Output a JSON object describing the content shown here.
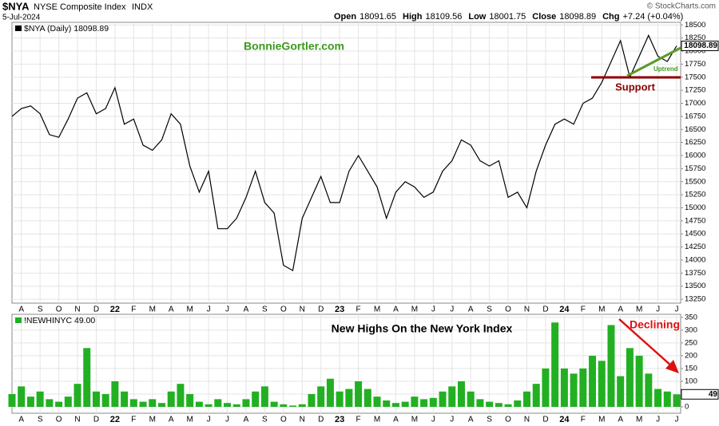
{
  "header": {
    "symbol": "$NYA",
    "name": "NYSE Composite Index",
    "exchange": "INDX",
    "date": "5-Jul-2024",
    "quote": [
      {
        "label": "Open",
        "value": "18091.65"
      },
      {
        "label": "High",
        "value": "18109.56"
      },
      {
        "label": "Low",
        "value": "18001.75"
      },
      {
        "label": "Close",
        "value": "18098.89"
      },
      {
        "label": "Chg",
        "value": "+7.24 (+0.04%)"
      }
    ],
    "credit": "© StockCharts.com"
  },
  "chart_data": [
    {
      "type": "line",
      "legend": "$NYA (Daily) 18098.89",
      "color": "#000000",
      "annotations": [
        "BonnieGortler.com",
        "Uptrend",
        "Support"
      ],
      "categories": [
        null,
        "A",
        null,
        "S",
        null,
        "O",
        null,
        "N",
        null,
        "D",
        null,
        "22",
        null,
        "F",
        null,
        "M",
        null,
        "A",
        null,
        "M",
        null,
        "J",
        null,
        "J",
        null,
        "A",
        null,
        "S",
        null,
        "O",
        null,
        "N",
        null,
        "D",
        null,
        "23",
        null,
        "F",
        null,
        "M",
        null,
        "A",
        null,
        "M",
        null,
        "J",
        null,
        "J",
        null,
        "A",
        null,
        "S",
        null,
        "O",
        null,
        "N",
        null,
        "D",
        null,
        "24",
        null,
        "F",
        null,
        "M",
        null,
        "A",
        null,
        "M",
        null,
        "J",
        null,
        "J"
      ],
      "values": [
        16750,
        16900,
        16950,
        16800,
        16400,
        16350,
        16700,
        17100,
        17200,
        16800,
        16900,
        17300,
        16600,
        16700,
        16200,
        16100,
        16300,
        16800,
        16600,
        15800,
        15300,
        15700,
        14600,
        14600,
        14800,
        15200,
        15700,
        15100,
        14900,
        13900,
        13800,
        14800,
        15200,
        15600,
        15100,
        15100,
        15700,
        16000,
        15700,
        15400,
        14800,
        15300,
        15500,
        15400,
        15200,
        15300,
        15700,
        15900,
        16300,
        16200,
        15900,
        15800,
        15900,
        15200,
        15300,
        15000,
        15700,
        16200,
        16600,
        16700,
        16600,
        17000,
        17100,
        17400,
        17800,
        18200,
        17500,
        17900,
        18300,
        17900,
        17800,
        18098.89
      ],
      "ylim": [
        13175,
        18550
      ],
      "yticks": [
        13250,
        13500,
        13750,
        14000,
        14250,
        14500,
        14750,
        15000,
        15250,
        15500,
        15750,
        16000,
        16250,
        16500,
        16750,
        17000,
        17250,
        17500,
        17750,
        18000,
        18250,
        18500
      ],
      "grid": true
    },
    {
      "type": "bar",
      "legend": "!NEWHINYC 49.00",
      "color": "#22b022",
      "annotations": [
        "New Highs On the New York Index",
        "Declining"
      ],
      "categories": [
        null,
        "A",
        null,
        "S",
        null,
        "O",
        null,
        "N",
        null,
        "D",
        null,
        "22",
        null,
        "F",
        null,
        "M",
        null,
        "A",
        null,
        "M",
        null,
        "J",
        null,
        "J",
        null,
        "A",
        null,
        "S",
        null,
        "O",
        null,
        "N",
        null,
        "D",
        null,
        "23",
        null,
        "F",
        null,
        "M",
        null,
        "A",
        null,
        "M",
        null,
        "J",
        null,
        "J",
        null,
        "A",
        null,
        "S",
        null,
        "O",
        null,
        "N",
        null,
        "D",
        null,
        "24",
        null,
        "F",
        null,
        "M",
        null,
        "A",
        null,
        "M",
        null,
        "J",
        null,
        "J"
      ],
      "values": [
        50,
        80,
        40,
        60,
        30,
        20,
        40,
        90,
        230,
        60,
        50,
        100,
        60,
        30,
        20,
        30,
        15,
        60,
        90,
        50,
        20,
        10,
        30,
        15,
        10,
        30,
        60,
        80,
        20,
        10,
        5,
        10,
        50,
        80,
        110,
        60,
        70,
        100,
        70,
        40,
        25,
        15,
        20,
        40,
        30,
        35,
        60,
        80,
        100,
        60,
        30,
        20,
        15,
        10,
        25,
        60,
        90,
        150,
        330,
        150,
        130,
        150,
        200,
        180,
        320,
        120,
        230,
        200,
        130,
        70,
        60,
        49
      ],
      "ylim": [
        -25,
        362
      ],
      "yticks": [
        0,
        50,
        100,
        150,
        200,
        250,
        300,
        350
      ],
      "grid": true
    }
  ]
}
